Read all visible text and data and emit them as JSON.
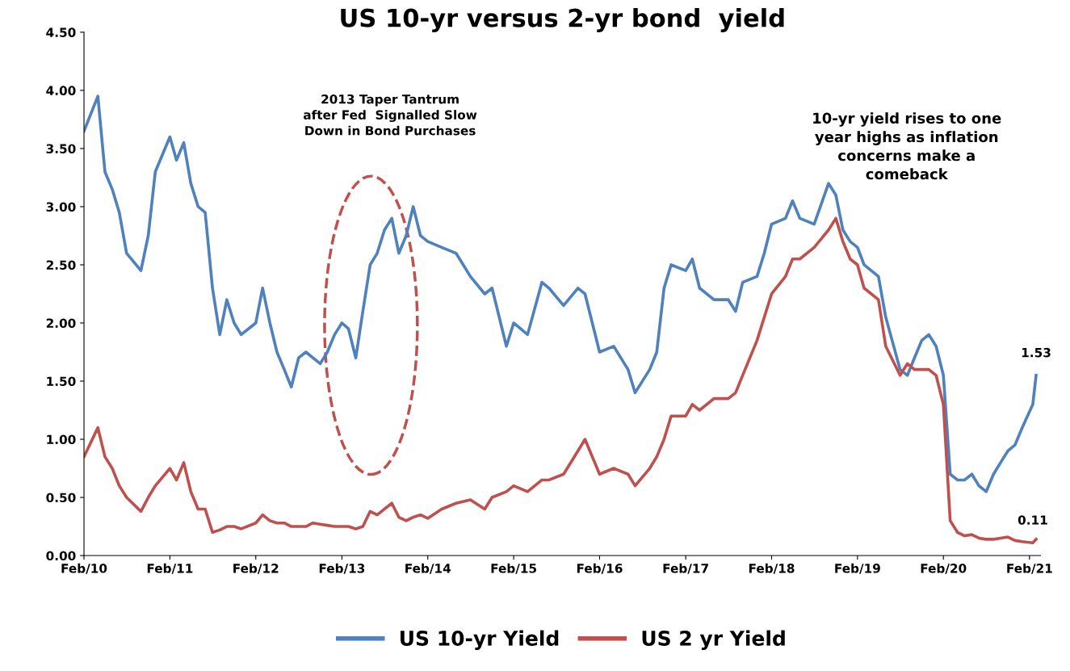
{
  "chart_data": {
    "type": "line",
    "title": "US 10-yr versus 2-yr bond  yield",
    "x": [
      "2010-02",
      "2010-04",
      "2010-05",
      "2010-06",
      "2010-07",
      "2010-08",
      "2010-10",
      "2010-11",
      "2010-12",
      "2011-02",
      "2011-03",
      "2011-04",
      "2011-05",
      "2011-06",
      "2011-07",
      "2011-08",
      "2011-09",
      "2011-10",
      "2011-11",
      "2011-12",
      "2012-02",
      "2012-03",
      "2012-04",
      "2012-05",
      "2012-06",
      "2012-07",
      "2012-08",
      "2012-09",
      "2012-10",
      "2012-11",
      "2012-12",
      "2013-01",
      "2013-02",
      "2013-03",
      "2013-04",
      "2013-05",
      "2013-06",
      "2013-07",
      "2013-08",
      "2013-09",
      "2013-10",
      "2013-11",
      "2013-12",
      "2014-01",
      "2014-02",
      "2014-04",
      "2014-06",
      "2014-08",
      "2014-10",
      "2014-11",
      "2015-01",
      "2015-02",
      "2015-04",
      "2015-06",
      "2015-07",
      "2015-09",
      "2015-11",
      "2015-12",
      "2016-01",
      "2016-02",
      "2016-04",
      "2016-06",
      "2016-07",
      "2016-09",
      "2016-10",
      "2016-11",
      "2016-12",
      "2017-02",
      "2017-03",
      "2017-04",
      "2017-06",
      "2017-08",
      "2017-09",
      "2017-10",
      "2017-12",
      "2018-01",
      "2018-02",
      "2018-04",
      "2018-05",
      "2018-06",
      "2018-08",
      "2018-10",
      "2018-11",
      "2018-12",
      "2019-01",
      "2019-02",
      "2019-03",
      "2019-05",
      "2019-06",
      "2019-08",
      "2019-09",
      "2019-10",
      "2019-11",
      "2019-12",
      "2020-01",
      "2020-02",
      "2020-03",
      "2020-04",
      "2020-05",
      "2020-06",
      "2020-07",
      "2020-08",
      "2020-09",
      "2020-10",
      "2020-11",
      "2020-12",
      "2021-01",
      "2021-02-15",
      "2021-03-01"
    ],
    "series": [
      {
        "name": "US 10-yr Yield",
        "color": "#4f81bd",
        "values": [
          3.65,
          3.95,
          3.3,
          3.15,
          2.95,
          2.6,
          2.45,
          2.75,
          3.3,
          3.6,
          3.4,
          3.55,
          3.2,
          3.0,
          2.95,
          2.3,
          1.9,
          2.2,
          2.0,
          1.9,
          2.0,
          2.3,
          2.0,
          1.75,
          1.6,
          1.45,
          1.7,
          1.75,
          1.7,
          1.65,
          1.75,
          1.9,
          2.0,
          1.95,
          1.7,
          2.1,
          2.5,
          2.6,
          2.8,
          2.9,
          2.6,
          2.75,
          3.0,
          2.75,
          2.7,
          2.65,
          2.6,
          2.4,
          2.25,
          2.3,
          1.8,
          2.0,
          1.9,
          2.35,
          2.3,
          2.15,
          2.3,
          2.25,
          2.0,
          1.75,
          1.8,
          1.6,
          1.4,
          1.6,
          1.75,
          2.3,
          2.5,
          2.45,
          2.55,
          2.3,
          2.2,
          2.2,
          2.1,
          2.35,
          2.4,
          2.6,
          2.85,
          2.9,
          3.05,
          2.9,
          2.85,
          3.2,
          3.1,
          2.8,
          2.7,
          2.65,
          2.5,
          2.4,
          2.05,
          1.6,
          1.55,
          1.7,
          1.85,
          1.9,
          1.8,
          1.55,
          0.7,
          0.65,
          0.65,
          0.7,
          0.6,
          0.55,
          0.7,
          0.8,
          0.9,
          0.95,
          1.1,
          1.3,
          1.55
        ]
      },
      {
        "name": "US 2 yr Yield",
        "color": "#c0504d",
        "values": [
          0.85,
          1.1,
          0.85,
          0.75,
          0.6,
          0.5,
          0.38,
          0.5,
          0.6,
          0.75,
          0.65,
          0.8,
          0.55,
          0.4,
          0.4,
          0.2,
          0.22,
          0.25,
          0.25,
          0.23,
          0.28,
          0.35,
          0.3,
          0.28,
          0.28,
          0.25,
          0.25,
          0.25,
          0.28,
          0.27,
          0.26,
          0.25,
          0.25,
          0.25,
          0.23,
          0.25,
          0.38,
          0.35,
          0.4,
          0.45,
          0.33,
          0.3,
          0.33,
          0.35,
          0.32,
          0.4,
          0.45,
          0.48,
          0.4,
          0.5,
          0.55,
          0.6,
          0.55,
          0.65,
          0.65,
          0.7,
          0.9,
          1.0,
          0.85,
          0.7,
          0.75,
          0.7,
          0.6,
          0.75,
          0.85,
          1.0,
          1.2,
          1.2,
          1.3,
          1.25,
          1.35,
          1.35,
          1.4,
          1.55,
          1.85,
          2.05,
          2.25,
          2.4,
          2.55,
          2.55,
          2.65,
          2.8,
          2.9,
          2.7,
          2.55,
          2.5,
          2.3,
          2.2,
          1.8,
          1.55,
          1.65,
          1.6,
          1.6,
          1.6,
          1.55,
          1.3,
          0.3,
          0.2,
          0.17,
          0.18,
          0.15,
          0.14,
          0.14,
          0.15,
          0.16,
          0.13,
          0.12,
          0.11,
          0.14
        ]
      }
    ],
    "xlim": [
      "2010-02-01",
      "2021-03-20"
    ],
    "xticks": [
      {
        "value": "2010-02-01",
        "label": "Feb/10"
      },
      {
        "value": "2011-02-01",
        "label": "Feb/11"
      },
      {
        "value": "2012-02-01",
        "label": "Feb/12"
      },
      {
        "value": "2013-02-01",
        "label": "Feb/13"
      },
      {
        "value": "2014-02-01",
        "label": "Feb/14"
      },
      {
        "value": "2015-02-01",
        "label": "Feb/15"
      },
      {
        "value": "2016-02-01",
        "label": "Feb/16"
      },
      {
        "value": "2017-02-01",
        "label": "Feb/17"
      },
      {
        "value": "2018-02-01",
        "label": "Feb/18"
      },
      {
        "value": "2019-02-01",
        "label": "Feb/19"
      },
      {
        "value": "2020-02-01",
        "label": "Feb/20"
      },
      {
        "value": "2021-02-01",
        "label": "Feb/21"
      }
    ],
    "ylim": [
      0,
      4.5
    ],
    "yticks": [
      {
        "value": 0,
        "label": "0.00"
      },
      {
        "value": 0.5,
        "label": "0.50"
      },
      {
        "value": 1,
        "label": "1.00"
      },
      {
        "value": 1.5,
        "label": "1.50"
      },
      {
        "value": 2,
        "label": "2.00"
      },
      {
        "value": 2.5,
        "label": "2.50"
      },
      {
        "value": 3,
        "label": "3.00"
      },
      {
        "value": 3.5,
        "label": "3.50"
      },
      {
        "value": 4,
        "label": "4.00"
      },
      {
        "value": 4.5,
        "label": "4.50"
      }
    ],
    "grid": false,
    "legend": "bottom",
    "marker": "none",
    "line_style": "solid",
    "annotations": [
      "2013 Taper Tantrum\nafter Fed  Signalled Slow\nDown in Bond Purchases",
      "10-yr yield rises to one\nyear highs as inflation\nconcerns make a\ncomeback",
      {
        "text": "1.53",
        "x": "2021-03-01",
        "y": 1.55
      },
      {
        "text": "0.11",
        "x": "2021-02-15",
        "y": 0.11
      }
    ]
  }
}
